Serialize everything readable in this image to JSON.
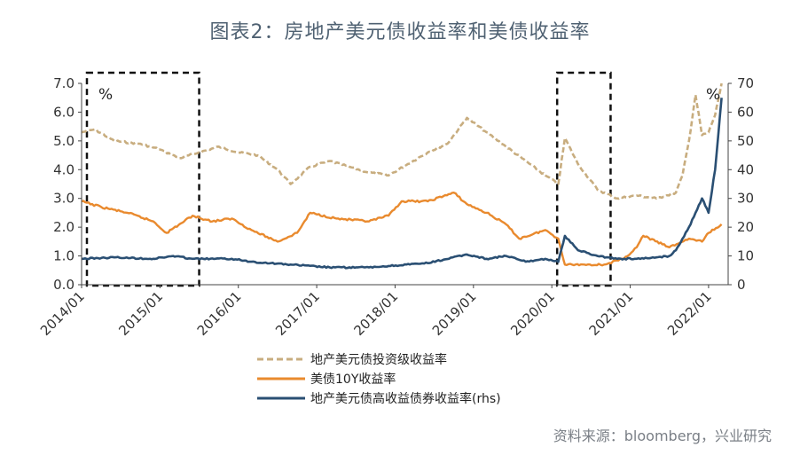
{
  "title": "图表2：房地产美元债收益率和美债收益率",
  "source": "资料来源：bloomberg，兴业研究",
  "chart_data": {
    "type": "line",
    "unit_left": "%",
    "unit_right": "%",
    "y_left": {
      "min": 0,
      "max": 7,
      "ticks": [
        "0.0",
        "1.0",
        "2.0",
        "3.0",
        "4.0",
        "5.0",
        "6.0",
        "7.0"
      ]
    },
    "y_right": {
      "min": 0,
      "max": 70,
      "ticks": [
        "0",
        "10",
        "20",
        "30",
        "40",
        "50",
        "60",
        "70"
      ]
    },
    "x_ticks": [
      "2014/01",
      "2015/01",
      "2016/01",
      "2017/01",
      "2018/01",
      "2019/01",
      "2020/01",
      "2021/01",
      "2022/01"
    ],
    "highlight_ranges": [
      [
        "2014-01",
        "2015-07"
      ],
      [
        "2020-01",
        "2020-10"
      ]
    ],
    "series": [
      {
        "name": "地产美元债投资级收益率",
        "color": "#c8ad7f",
        "style": "dashed",
        "axis": "left",
        "points": [
          [
            "2014-01",
            5.3
          ],
          [
            "2014-03",
            5.4
          ],
          [
            "2014-06",
            5.0
          ],
          [
            "2014-10",
            4.9
          ],
          [
            "2015-01",
            4.7
          ],
          [
            "2015-04",
            4.4
          ],
          [
            "2015-07",
            4.6
          ],
          [
            "2015-10",
            4.8
          ],
          [
            "2016-01",
            4.6
          ],
          [
            "2016-04",
            4.5
          ],
          [
            "2016-07",
            4.0
          ],
          [
            "2016-09",
            3.5
          ],
          [
            "2016-12",
            4.1
          ],
          [
            "2017-03",
            4.3
          ],
          [
            "2017-06",
            4.1
          ],
          [
            "2017-09",
            3.9
          ],
          [
            "2017-12",
            3.8
          ],
          [
            "2018-03",
            4.2
          ],
          [
            "2018-06",
            4.6
          ],
          [
            "2018-09",
            4.9
          ],
          [
            "2018-12",
            5.8
          ],
          [
            "2019-03",
            5.3
          ],
          [
            "2019-06",
            4.8
          ],
          [
            "2019-09",
            4.3
          ],
          [
            "2019-12",
            3.8
          ],
          [
            "2020-02",
            3.5
          ],
          [
            "2020-03",
            5.1
          ],
          [
            "2020-05",
            4.2
          ],
          [
            "2020-08",
            3.3
          ],
          [
            "2020-11",
            3.0
          ],
          [
            "2021-02",
            3.1
          ],
          [
            "2021-05",
            3.0
          ],
          [
            "2021-08",
            3.2
          ],
          [
            "2021-09",
            3.8
          ],
          [
            "2021-10",
            5.0
          ],
          [
            "2021-11",
            6.6
          ],
          [
            "2021-12",
            5.2
          ],
          [
            "2022-01",
            5.3
          ],
          [
            "2022-02",
            5.9
          ],
          [
            "2022-03",
            7.0
          ]
        ]
      },
      {
        "name": "美债10Y收益率",
        "color": "#e98a2e",
        "style": "solid",
        "axis": "left",
        "points": [
          [
            "2014-01",
            2.9
          ],
          [
            "2014-04",
            2.7
          ],
          [
            "2014-08",
            2.5
          ],
          [
            "2014-12",
            2.2
          ],
          [
            "2015-02",
            1.8
          ],
          [
            "2015-06",
            2.4
          ],
          [
            "2015-09",
            2.2
          ],
          [
            "2015-12",
            2.3
          ],
          [
            "2016-03",
            1.9
          ],
          [
            "2016-07",
            1.5
          ],
          [
            "2016-10",
            1.8
          ],
          [
            "2016-12",
            2.5
          ],
          [
            "2017-04",
            2.3
          ],
          [
            "2017-09",
            2.2
          ],
          [
            "2017-12",
            2.4
          ],
          [
            "2018-02",
            2.9
          ],
          [
            "2018-06",
            2.9
          ],
          [
            "2018-10",
            3.2
          ],
          [
            "2018-12",
            2.8
          ],
          [
            "2019-03",
            2.5
          ],
          [
            "2019-06",
            2.1
          ],
          [
            "2019-08",
            1.6
          ],
          [
            "2019-12",
            1.9
          ],
          [
            "2020-02",
            1.6
          ],
          [
            "2020-03",
            0.7
          ],
          [
            "2020-06",
            0.7
          ],
          [
            "2020-09",
            0.7
          ],
          [
            "2020-12",
            0.9
          ],
          [
            "2021-02",
            1.3
          ],
          [
            "2021-03",
            1.7
          ],
          [
            "2021-07",
            1.3
          ],
          [
            "2021-10",
            1.6
          ],
          [
            "2021-12",
            1.5
          ],
          [
            "2022-01",
            1.8
          ],
          [
            "2022-03",
            2.1
          ]
        ]
      },
      {
        "name": "地产美元债高收益债券收益率(rhs)",
        "color": "#2a4f73",
        "style": "solid",
        "axis": "right",
        "points": [
          [
            "2014-01",
            9
          ],
          [
            "2014-06",
            9.5
          ],
          [
            "2014-12",
            9
          ],
          [
            "2015-03",
            10
          ],
          [
            "2015-06",
            9
          ],
          [
            "2015-12",
            9
          ],
          [
            "2016-03",
            8
          ],
          [
            "2016-09",
            7
          ],
          [
            "2017-03",
            6
          ],
          [
            "2017-09",
            6
          ],
          [
            "2017-12",
            6.5
          ],
          [
            "2018-06",
            7.5
          ],
          [
            "2018-12",
            10.5
          ],
          [
            "2019-03",
            9
          ],
          [
            "2019-06",
            10
          ],
          [
            "2019-09",
            8
          ],
          [
            "2019-12",
            9
          ],
          [
            "2020-02",
            8
          ],
          [
            "2020-03",
            17
          ],
          [
            "2020-05",
            12
          ],
          [
            "2020-08",
            10
          ],
          [
            "2020-11",
            9
          ],
          [
            "2021-02",
            9
          ],
          [
            "2021-05",
            9.5
          ],
          [
            "2021-07",
            10
          ],
          [
            "2021-08",
            12
          ],
          [
            "2021-09",
            16
          ],
          [
            "2021-10",
            20
          ],
          [
            "2021-11",
            25
          ],
          [
            "2021-12",
            30
          ],
          [
            "2022-01",
            25
          ],
          [
            "2022-02",
            40
          ],
          [
            "2022-03",
            65
          ]
        ]
      }
    ]
  }
}
